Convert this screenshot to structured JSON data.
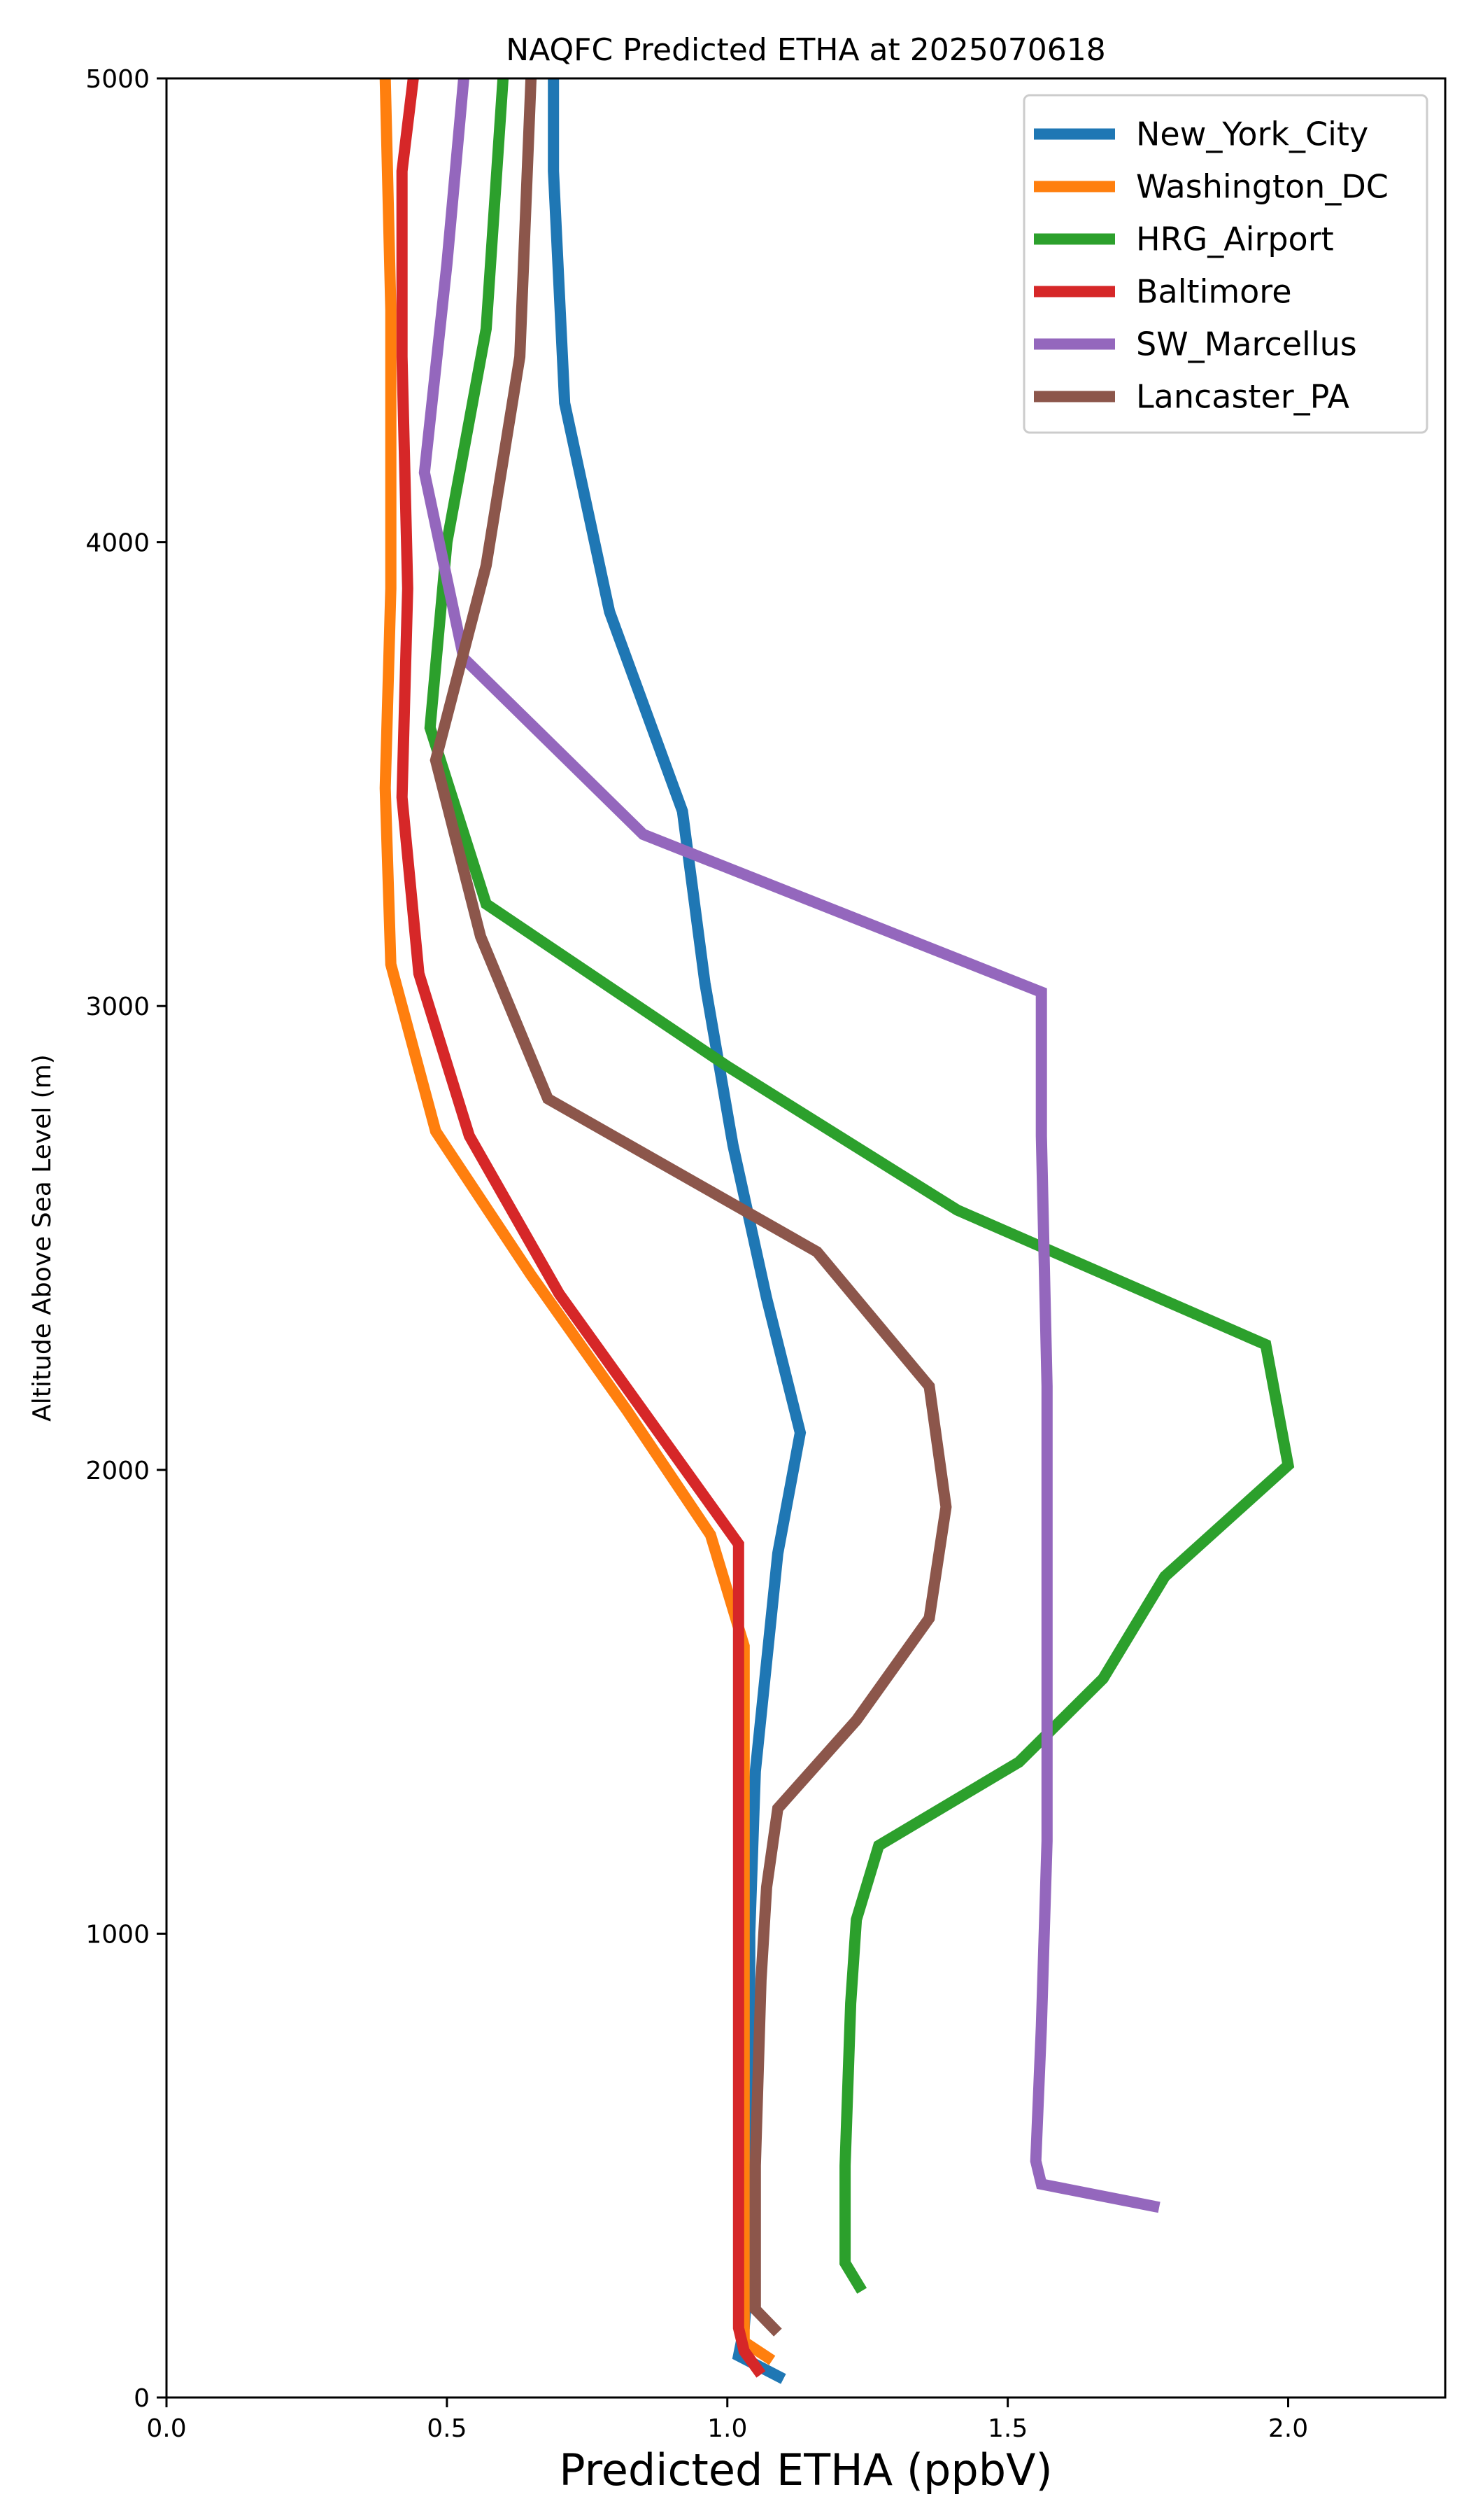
{
  "chart_data": {
    "type": "line",
    "title": "NAQFC Predicted ETHA at 2025070618",
    "xlabel": "Predicted ETHA (ppbV)",
    "ylabel": "Altitude Above Sea Level (m)",
    "xlim": [
      0.0,
      2.28
    ],
    "ylim": [
      0,
      5000
    ],
    "xticks": [
      "0.0",
      "0.5",
      "1.0",
      "1.5",
      "2.0"
    ],
    "yticks": [
      "0",
      "1000",
      "2000",
      "3000",
      "4000",
      "5000"
    ],
    "grid": false,
    "legend_position": "top-right",
    "series": [
      {
        "name": "New_York_City",
        "color": "#1f77b4",
        "points": [
          [
            1.1,
            40
          ],
          [
            1.02,
            90
          ],
          [
            1.03,
            150
          ],
          [
            1.04,
            300
          ],
          [
            1.04,
            600
          ],
          [
            1.04,
            1000
          ],
          [
            1.05,
            1350
          ],
          [
            1.09,
            1820
          ],
          [
            1.13,
            2080
          ],
          [
            1.07,
            2370
          ],
          [
            1.01,
            2700
          ],
          [
            0.96,
            3050
          ],
          [
            0.92,
            3420
          ],
          [
            0.79,
            3850
          ],
          [
            0.71,
            4300
          ],
          [
            0.69,
            4800
          ],
          [
            0.69,
            5000
          ]
        ]
      },
      {
        "name": "Washington_DC",
        "color": "#ff7f0e",
        "points": [
          [
            1.08,
            80
          ],
          [
            1.03,
            120
          ],
          [
            1.03,
            300
          ],
          [
            1.03,
            800
          ],
          [
            1.03,
            1300
          ],
          [
            1.03,
            1620
          ],
          [
            0.97,
            1860
          ],
          [
            0.82,
            2130
          ],
          [
            0.65,
            2420
          ],
          [
            0.48,
            2730
          ],
          [
            0.4,
            3090
          ],
          [
            0.39,
            3470
          ],
          [
            0.4,
            3900
          ],
          [
            0.4,
            4500
          ],
          [
            0.39,
            5000
          ]
        ]
      },
      {
        "name": "HRG_Airport",
        "color": "#2ca02c",
        "points": [
          [
            1.24,
            230
          ],
          [
            1.21,
            290
          ],
          [
            1.21,
            500
          ],
          [
            1.22,
            850
          ],
          [
            1.23,
            1030
          ],
          [
            1.27,
            1190
          ],
          [
            1.52,
            1370
          ],
          [
            1.67,
            1550
          ],
          [
            1.78,
            1770
          ],
          [
            2.0,
            2010
          ],
          [
            1.96,
            2270
          ],
          [
            1.41,
            2560
          ],
          [
            1.0,
            2870
          ],
          [
            0.57,
            3220
          ],
          [
            0.47,
            3600
          ],
          [
            0.5,
            4000
          ],
          [
            0.57,
            4460
          ],
          [
            0.6,
            5000
          ]
        ]
      },
      {
        "name": "Baltimore",
        "color": "#d62728",
        "points": [
          [
            1.06,
            50
          ],
          [
            1.03,
            100
          ],
          [
            1.02,
            150
          ],
          [
            1.02,
            400
          ],
          [
            1.02,
            900
          ],
          [
            1.02,
            1300
          ],
          [
            1.02,
            1620
          ],
          [
            1.02,
            1840
          ],
          [
            0.7,
            2380
          ],
          [
            0.54,
            2720
          ],
          [
            0.45,
            3070
          ],
          [
            0.42,
            3450
          ],
          [
            0.43,
            3900
          ],
          [
            0.42,
            4400
          ],
          [
            0.42,
            4800
          ],
          [
            0.44,
            5000
          ]
        ]
      },
      {
        "name": "SW_Marcellus",
        "color": "#9467bd",
        "points": [
          [
            1.77,
            410
          ],
          [
            1.56,
            460
          ],
          [
            1.55,
            510
          ],
          [
            1.56,
            800
          ],
          [
            1.57,
            1200
          ],
          [
            1.57,
            1600
          ],
          [
            1.57,
            1900
          ],
          [
            1.57,
            2180
          ],
          [
            1.56,
            2720
          ],
          [
            1.56,
            3030
          ],
          [
            0.85,
            3370
          ],
          [
            0.53,
            3750
          ],
          [
            0.46,
            4150
          ],
          [
            0.5,
            4600
          ],
          [
            0.53,
            5000
          ]
        ]
      },
      {
        "name": "Lancaster_PA",
        "color": "#8c564b",
        "points": [
          [
            1.09,
            140
          ],
          [
            1.05,
            190
          ],
          [
            1.05,
            500
          ],
          [
            1.06,
            900
          ],
          [
            1.07,
            1100
          ],
          [
            1.09,
            1270
          ],
          [
            1.23,
            1460
          ],
          [
            1.36,
            1680
          ],
          [
            1.39,
            1920
          ],
          [
            1.36,
            2180
          ],
          [
            1.16,
            2470
          ],
          [
            0.68,
            2800
          ],
          [
            0.56,
            3150
          ],
          [
            0.48,
            3530
          ],
          [
            0.57,
            3950
          ],
          [
            0.63,
            4400
          ],
          [
            0.65,
            5000
          ]
        ]
      }
    ]
  }
}
